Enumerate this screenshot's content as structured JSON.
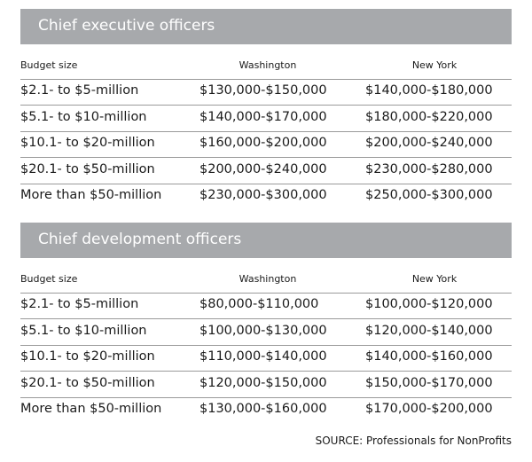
{
  "sections": [
    {
      "title": "Chief executive officers",
      "headers": [
        "Budget size",
        "Washington",
        "New York"
      ],
      "rows": [
        [
          "$2.1- to $5-million",
          "$130,000-$150,000",
          "$140,000-$180,000"
        ],
        [
          "$5.1- to $10-million",
          "$140,000-$170,000",
          "$180,000-$220,000"
        ],
        [
          "$10.1- to $20-million",
          "$160,000-$200,000",
          "$200,000-$240,000"
        ],
        [
          "$20.1- to $50-million",
          "$200,000-$240,000",
          "$230,000-$280,000"
        ],
        [
          "More than $50-million",
          "$230,000-$300,000",
          "$250,000-$300,000"
        ]
      ]
    },
    {
      "title": "Chief development officers",
      "headers": [
        "Budget size",
        "Washington",
        "New York"
      ],
      "rows": [
        [
          "$2.1- to $5-million",
          "$80,000-$110,000",
          "$100,000-$120,000"
        ],
        [
          "$5.1- to $10-million",
          "$100,000-$130,000",
          "$120,000-$140,000"
        ],
        [
          "$10.1- to $20-million",
          "$110,000-$140,000",
          "$140,000-$160,000"
        ],
        [
          "$20.1- to $50-million",
          "$120,000-$150,000",
          "$150,000-$170,000"
        ],
        [
          "More than $50-million",
          "$130,000-$160,000",
          "$170,000-$200,000"
        ]
      ]
    }
  ],
  "source": "SOURCE: Professionals for NonProfits"
}
